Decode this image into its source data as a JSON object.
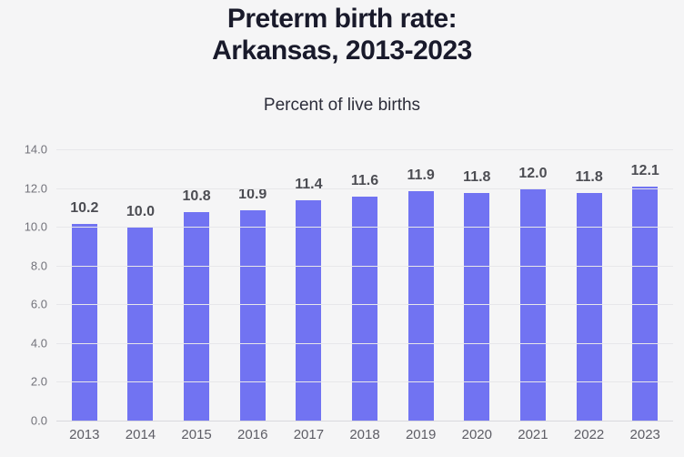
{
  "header": {
    "title_line1": "Preterm birth rate:",
    "title_line2": "Arkansas, 2013-2023",
    "subtitle": "Percent of live births"
  },
  "chart_data": {
    "type": "bar",
    "title": "Preterm birth rate: Arkansas, 2013-2023",
    "subtitle": "Percent of live births",
    "categories": [
      "2013",
      "2014",
      "2015",
      "2016",
      "2017",
      "2018",
      "2019",
      "2020",
      "2021",
      "2022",
      "2023"
    ],
    "values": [
      10.2,
      10.0,
      10.8,
      10.9,
      11.4,
      11.6,
      11.9,
      11.8,
      12.0,
      11.8,
      12.1
    ],
    "value_labels": [
      "10.2",
      "10.0",
      "10.8",
      "10.9",
      "11.4",
      "11.6",
      "11.9",
      "11.8",
      "12.0",
      "11.8",
      "12.1"
    ],
    "xlabel": "",
    "ylabel": "",
    "ylim": [
      0,
      14
    ],
    "yticks": [
      0,
      2,
      4,
      6,
      8,
      10,
      12,
      14
    ],
    "ytick_labels": [
      "0.0",
      "2.0",
      "4.0",
      "6.0",
      "8.0",
      "10.0",
      "12.0",
      "14.0"
    ],
    "grid": "horizontal",
    "legend": "none",
    "colors": {
      "bar": "#7173f2",
      "background": "#f5f5f6",
      "gridline": "#e7e7ea",
      "baseline": "#d9d9dd",
      "title_text": "#191a2b",
      "subtitle_text": "#2c2d3a",
      "tick_text": "#72727a",
      "value_label_text": "#4c4d53"
    }
  }
}
